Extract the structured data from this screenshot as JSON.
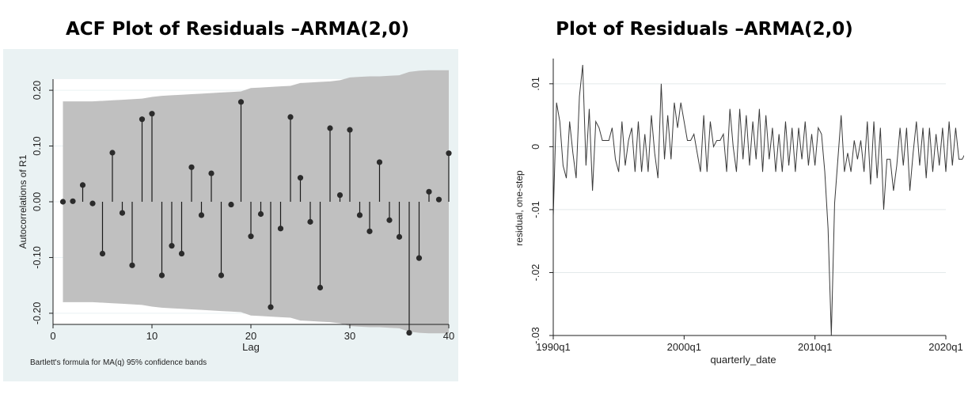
{
  "chart_data": [
    {
      "type": "bar",
      "title": "ACF Plot of Residuals –ARMA(2,0)",
      "xlabel": "Lag",
      "ylabel": "Autocorrelations of R1",
      "note": "Bartlett's formula for MA(q) 95% confidence bands",
      "xlim": [
        0,
        40
      ],
      "ylim": [
        -0.22,
        0.22
      ],
      "xticks": [
        "0",
        "10",
        "20",
        "30",
        "40"
      ],
      "yticks": [
        "-0.20",
        "-0.10",
        "0.00",
        "0.10",
        "0.20"
      ],
      "x": [
        1,
        2,
        3,
        4,
        5,
        6,
        7,
        8,
        9,
        10,
        11,
        12,
        13,
        14,
        15,
        16,
        17,
        18,
        19,
        20,
        21,
        22,
        23,
        24,
        25,
        26,
        27,
        28,
        29,
        30,
        31,
        32,
        33,
        34,
        35,
        36,
        37,
        38,
        39,
        40
      ],
      "values": [
        0.0,
        0.001,
        0.03,
        -0.003,
        -0.093,
        0.088,
        -0.02,
        -0.114,
        0.148,
        0.158,
        -0.132,
        -0.079,
        -0.093,
        0.062,
        -0.024,
        0.051,
        -0.132,
        -0.005,
        0.179,
        -0.062,
        -0.022,
        -0.189,
        -0.048,
        0.152,
        0.043,
        -0.036,
        -0.154,
        0.132,
        0.012,
        0.129,
        -0.024,
        -0.053,
        0.071,
        -0.033,
        -0.063,
        -0.235,
        -0.101,
        0.018,
        0.004,
        0.087
      ],
      "band_upper": [
        0.18,
        0.18,
        0.18,
        0.18,
        0.181,
        0.182,
        0.183,
        0.184,
        0.185,
        0.188,
        0.19,
        0.191,
        0.192,
        0.193,
        0.194,
        0.195,
        0.196,
        0.197,
        0.198,
        0.204,
        0.205,
        0.206,
        0.207,
        0.208,
        0.213,
        0.214,
        0.215,
        0.216,
        0.218,
        0.223,
        0.224,
        0.225,
        0.225,
        0.226,
        0.227,
        0.233,
        0.235,
        0.236,
        0.236,
        0.236
      ],
      "colors": {
        "band": "#c0c0c0",
        "stem": "#1a1a1a",
        "marker": "#2b2b2b",
        "plot_bg": "#ffffff",
        "outer_bg": "#eaf2f3"
      }
    },
    {
      "type": "line",
      "title": "Plot of Residuals –ARMA(2,0)",
      "xlabel": "quarterly_date",
      "ylabel": "residual, one-step",
      "xticks": [
        "1990q1",
        "2000q1",
        "2010q1",
        "2020q1"
      ],
      "yticks": [
        ".01",
        "0",
        "-.01",
        "-.02",
        "-.03"
      ],
      "xlim": [
        1990.0,
        2020.0
      ],
      "ylim": [
        -0.03,
        0.013
      ],
      "series": [
        {
          "x_start": "1990q1",
          "x_step": "quarter",
          "values": [
            -0.011,
            0.007,
            0.004,
            -0.003,
            -0.005,
            0.004,
            -0.001,
            -0.005,
            0.008,
            0.013,
            -0.003,
            0.006,
            -0.007,
            0.004,
            0.003,
            0.001,
            0.001,
            0.001,
            0.003,
            -0.002,
            -0.004,
            0.004,
            -0.003,
            0.001,
            0.003,
            -0.004,
            0.004,
            -0.004,
            0.002,
            -0.004,
            0.005,
            -0.001,
            -0.005,
            0.01,
            -0.002,
            0.005,
            -0.002,
            0.007,
            0.003,
            0.007,
            0.004,
            0.001,
            0.001,
            0.002,
            -0.001,
            -0.004,
            0.005,
            -0.004,
            0.004,
            0.0,
            0.001,
            0.001,
            0.002,
            -0.004,
            0.006,
            0.0,
            -0.004,
            0.006,
            -0.002,
            0.005,
            -0.003,
            0.004,
            -0.002,
            0.006,
            -0.004,
            0.005,
            -0.002,
            0.003,
            -0.004,
            0.002,
            -0.004,
            0.004,
            -0.003,
            0.003,
            -0.004,
            0.003,
            -0.002,
            0.004,
            -0.003,
            0.002,
            -0.003,
            0.003,
            0.002,
            -0.004,
            -0.013,
            -0.03,
            -0.009,
            -0.002,
            0.005,
            -0.004,
            -0.001,
            -0.004,
            0.001,
            -0.002,
            0.001,
            -0.004,
            0.004,
            -0.006,
            0.004,
            -0.005,
            0.003,
            -0.01,
            -0.002,
            -0.002,
            -0.007,
            -0.003,
            0.003,
            -0.003,
            0.003,
            -0.007,
            -0.001,
            0.004,
            -0.003,
            0.003,
            -0.005,
            0.003,
            -0.004,
            0.002,
            -0.003,
            0.003,
            -0.004,
            0.004,
            -0.003,
            0.003,
            -0.002,
            -0.002,
            -0.001,
            0.006,
            0.0,
            -0.002,
            0.002,
            -0.004,
            -0.004,
            -0.003,
            0.006,
            -0.004,
            -0.004,
            -0.003
          ]
        }
      ],
      "colors": {
        "line": "#3a3a3a",
        "grid": "#e3e9ea",
        "plot_bg": "#ffffff",
        "outer_bg": "#ffffff"
      }
    }
  ]
}
